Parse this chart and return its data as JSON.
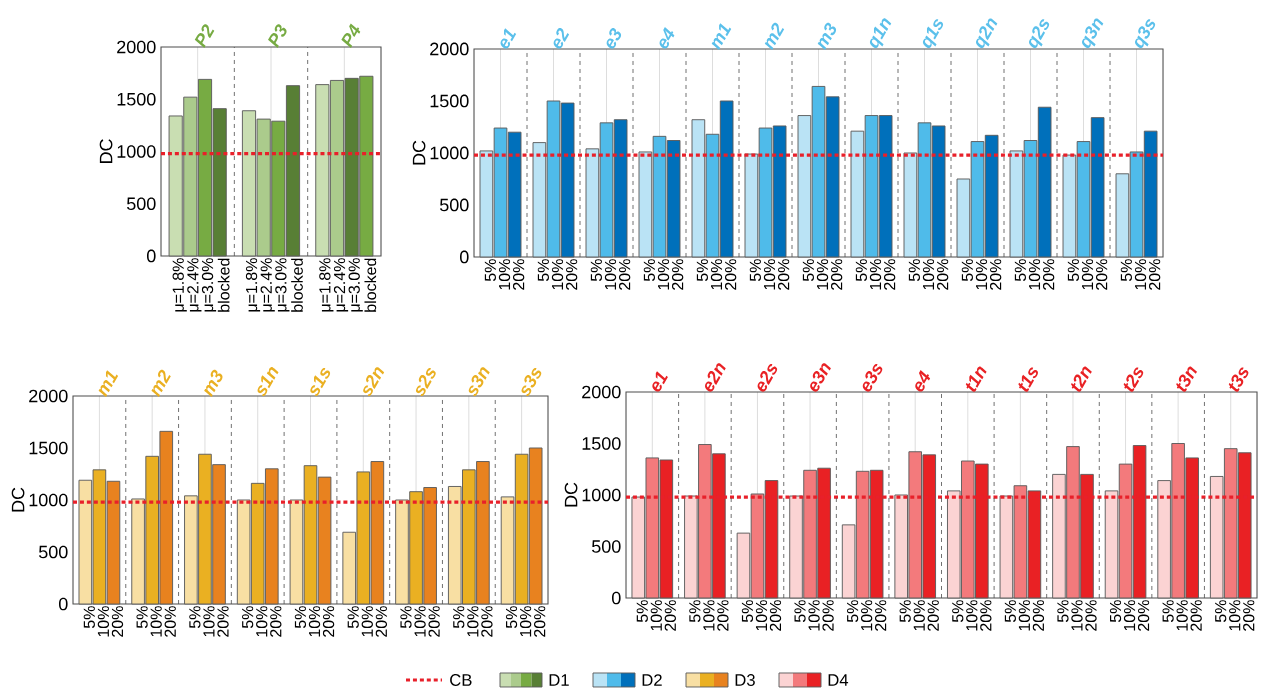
{
  "chart_data": [
    {
      "type": "bar",
      "categories": [
        "P2",
        "P3",
        "P4"
      ],
      "ylabel": "DC",
      "ylim": [
        0,
        2000
      ],
      "yticks": [
        0,
        500,
        1000,
        1500,
        2000
      ],
      "grid": "x",
      "legend": "bottom",
      "legend_title": "D1",
      "ref_lines": [
        {
          "axis": "y",
          "value": 980,
          "label": "CB",
          "color": "#e8202a",
          "line_style": "dotted"
        }
      ],
      "series": [
        {
          "name": "μ=1.8%",
          "color": "#c9deb2",
          "values": [
            1340,
            1390,
            1640
          ]
        },
        {
          "name": "μ=2.4%",
          "color": "#abcb8c",
          "values": [
            1520,
            1310,
            1680
          ]
        },
        {
          "name": "μ=3.0%",
          "color": "#77ab43",
          "colors": [
            "#77ab43",
            "#77ab43",
            "#587f35"
          ],
          "values": [
            1690,
            1290,
            1700
          ]
        },
        {
          "name": "blocked",
          "color": "#587f35",
          "colors": [
            "#587f35",
            "#587f35",
            "#77ab43"
          ],
          "values": [
            1410,
            1630,
            1720
          ]
        }
      ]
    },
    {
      "type": "bar",
      "categories": [
        "e1",
        "e2",
        "e3",
        "e4",
        "m1",
        "m2",
        "m3",
        "q1n",
        "q1s",
        "q2n",
        "q2s",
        "q3n",
        "q3s"
      ],
      "ylabel": "DC",
      "ylim": [
        0,
        2000
      ],
      "yticks": [
        0,
        500,
        1000,
        1500,
        2000
      ],
      "grid": "x",
      "legend": "bottom",
      "legend_title": "D2",
      "ref_lines": [
        {
          "axis": "y",
          "value": 980,
          "color": "#e8202a",
          "line_style": "dotted"
        }
      ],
      "series": [
        {
          "name": "5%",
          "color": "#bae3f5",
          "values": [
            1020,
            1100,
            1040,
            1010,
            1320,
            990,
            1360,
            1210,
            1000,
            750,
            1020,
            980,
            800
          ]
        },
        {
          "name": "10%",
          "color": "#4fbbea",
          "values": [
            1240,
            1500,
            1290,
            1160,
            1180,
            1240,
            1640,
            1360,
            1290,
            1110,
            1120,
            1110,
            1010
          ]
        },
        {
          "name": "20%",
          "color": "#0070bb",
          "values": [
            1200,
            1480,
            1320,
            1120,
            1500,
            1260,
            1540,
            1360,
            1260,
            1170,
            1440,
            1340,
            1210
          ]
        }
      ]
    },
    {
      "type": "bar",
      "categories": [
        "m1",
        "m2",
        "m3",
        "s1n",
        "s1s",
        "s2n",
        "s2s",
        "s3n",
        "s3s"
      ],
      "ylabel": "DC",
      "ylim": [
        0,
        2000
      ],
      "yticks": [
        0,
        500,
        1000,
        1500,
        2000
      ],
      "grid": "x",
      "legend": "bottom",
      "legend_title": "D3",
      "ref_lines": [
        {
          "axis": "y",
          "value": 980,
          "color": "#e8202a",
          "line_style": "dotted"
        }
      ],
      "series": [
        {
          "name": "5%",
          "color": "#f8dfa3",
          "values": [
            1190,
            1010,
            1040,
            1000,
            1000,
            690,
            1000,
            1130,
            1030
          ]
        },
        {
          "name": "10%",
          "color": "#eab022",
          "values": [
            1290,
            1420,
            1440,
            1160,
            1330,
            1270,
            1080,
            1290,
            1440
          ]
        },
        {
          "name": "20%",
          "color": "#e8821f",
          "values": [
            1180,
            1660,
            1340,
            1300,
            1220,
            1370,
            1120,
            1370,
            1500
          ]
        }
      ]
    },
    {
      "type": "bar",
      "categories": [
        "e1",
        "e2n",
        "e2s",
        "e3n",
        "e3s",
        "e4",
        "t1n",
        "t1s",
        "t2n",
        "t2s",
        "t3n",
        "t3s"
      ],
      "ylabel": "DC",
      "ylim": [
        0,
        2000
      ],
      "yticks": [
        0,
        500,
        1000,
        1500,
        2000
      ],
      "grid": "x",
      "legend": "bottom",
      "legend_title": "D4",
      "ref_lines": [
        {
          "axis": "y",
          "value": 980,
          "color": "#e8202a",
          "line_style": "dotted"
        }
      ],
      "series": [
        {
          "name": "5%",
          "color": "#fbd3d3",
          "values": [
            980,
            990,
            630,
            990,
            710,
            1000,
            1040,
            990,
            1200,
            1040,
            1140,
            1180
          ]
        },
        {
          "name": "10%",
          "color": "#f37a7c",
          "values": [
            1360,
            1490,
            1010,
            1240,
            1230,
            1420,
            1330,
            1090,
            1470,
            1300,
            1500,
            1450
          ]
        },
        {
          "name": "20%",
          "color": "#e92124",
          "values": [
            1340,
            1400,
            1140,
            1260,
            1240,
            1390,
            1300,
            1040,
            1200,
            1480,
            1360,
            1410
          ]
        }
      ]
    }
  ]
}
